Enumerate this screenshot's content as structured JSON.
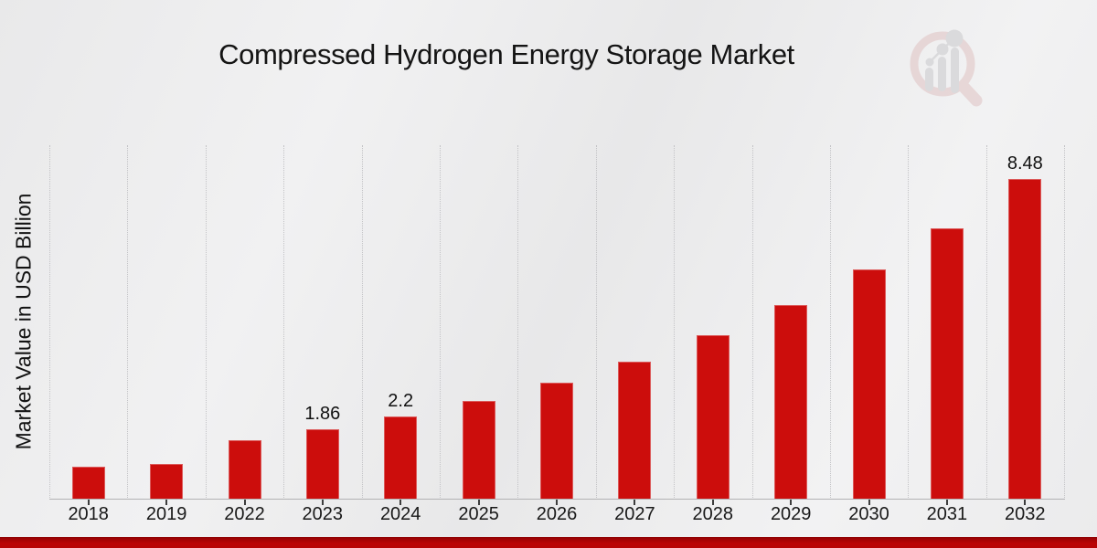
{
  "title": "Compressed Hydrogen Energy Storage Market",
  "y_axis_label": "Market Value in USD Billion",
  "brand": {
    "logo_icon": "market-research-future-magnifier-bar-chart-watermark"
  },
  "colors": {
    "bar": "#cc0d0c",
    "grid": "#c3c3c6",
    "axis": "#b2b2b4",
    "tick": "#3d3d3d",
    "footer_bar": "#b30404",
    "logo_ring": "#dfc2c2",
    "logo_bars": "#c9c9cb"
  },
  "chart_data": {
    "type": "bar",
    "title": "Compressed Hydrogen Energy Storage Market",
    "xlabel": "",
    "ylabel": "Market Value in USD Billion",
    "categories": [
      "2018",
      "2019",
      "2022",
      "2023",
      "2024",
      "2025",
      "2026",
      "2027",
      "2028",
      "2029",
      "2030",
      "2031",
      "2032"
    ],
    "values": [
      0.87,
      0.95,
      1.57,
      1.86,
      2.2,
      2.61,
      3.1,
      3.66,
      4.34,
      5.15,
      6.1,
      7.19,
      8.48
    ],
    "bar_labels": [
      "",
      "",
      "",
      "1.86",
      "2.2",
      "",
      "",
      "",
      "",
      "",
      "",
      "",
      "8.48"
    ],
    "unit": "USD Billion",
    "ylim": [
      0,
      9.38
    ],
    "bar_color": "#cc0d0c",
    "grid": "vertical dotted lines at category boundaries",
    "y_tick_labels": "none",
    "legend": "none"
  }
}
